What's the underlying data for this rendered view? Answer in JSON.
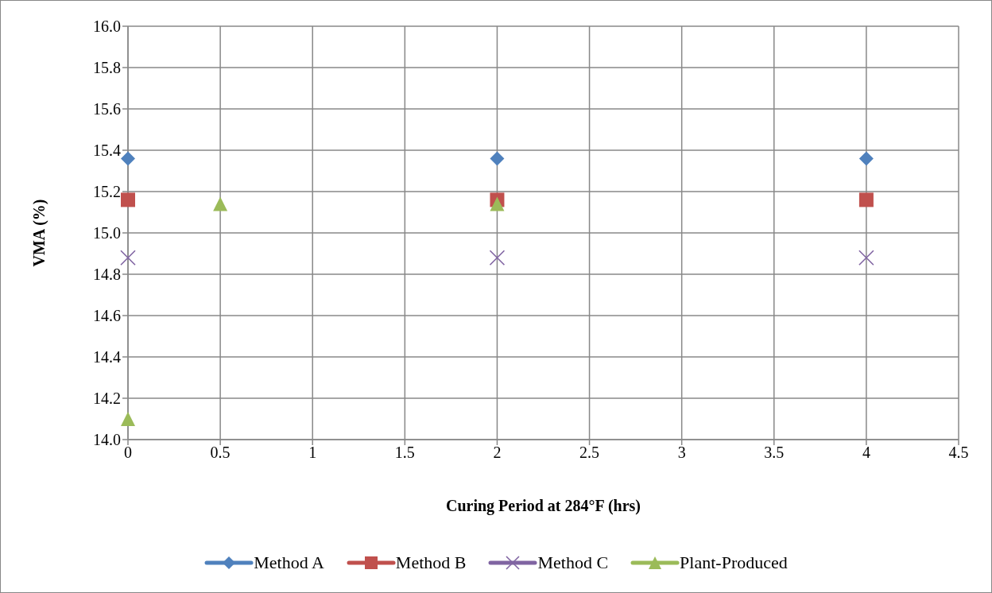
{
  "chart_data": {
    "type": "scatter",
    "xlabel": "Curing Period at 284°F (hrs)",
    "ylabel": "VMA (%)",
    "xlim": [
      0,
      4.5
    ],
    "xticks": [
      0,
      0.5,
      1,
      1.5,
      2,
      2.5,
      3,
      3.5,
      4,
      4.5
    ],
    "ylim": [
      14.0,
      16.0
    ],
    "yticks": [
      {
        "value": 14,
        "label": "14.0"
      },
      {
        "value": 14.2,
        "label": "14.2"
      },
      {
        "value": 14.4,
        "label": "14.4"
      },
      {
        "value": 14.6,
        "label": "14.6"
      },
      {
        "value": 14.8,
        "label": "14.8"
      },
      {
        "value": 15,
        "label": "15.0"
      },
      {
        "value": 15.2,
        "label": "15.2"
      },
      {
        "value": 15.4,
        "label": "15.4"
      },
      {
        "value": 15.6,
        "label": "15.6"
      },
      {
        "value": 15.8,
        "label": "15.8"
      },
      {
        "value": 16,
        "label": "16.0"
      }
    ],
    "grid": true,
    "legend": "bottom",
    "series": [
      {
        "name": "Method A",
        "color": "#4f81bd",
        "marker": "diamond",
        "x": [
          0,
          2,
          4
        ],
        "values": [
          15.36,
          15.36,
          15.36
        ]
      },
      {
        "name": "Method B",
        "color": "#c0504d",
        "marker": "square",
        "x": [
          0,
          2,
          4
        ],
        "values": [
          15.16,
          15.16,
          15.16
        ]
      },
      {
        "name": "Method C",
        "color": "#8064a2",
        "marker": "cross",
        "x": [
          0,
          2,
          4
        ],
        "values": [
          14.88,
          14.88,
          14.88
        ]
      },
      {
        "name": "Plant-Produced",
        "color": "#9bbb59",
        "marker": "triangle",
        "x": [
          0,
          0.5,
          2
        ],
        "values": [
          14.1,
          15.14,
          15.14
        ]
      }
    ]
  }
}
